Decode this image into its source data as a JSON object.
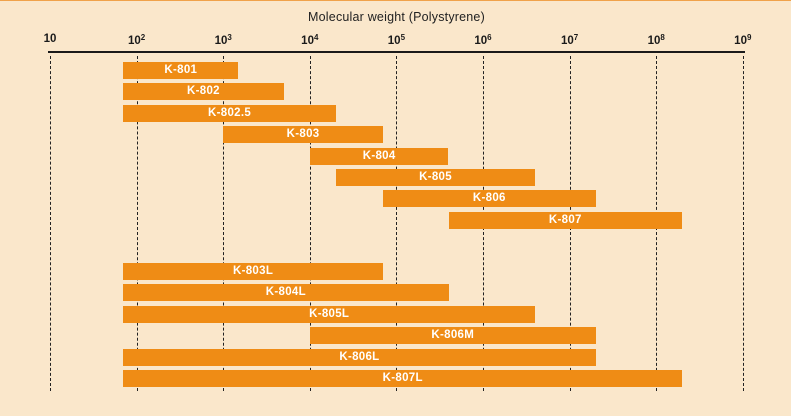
{
  "chart_data": {
    "type": "bar",
    "subtype": "horizontal-log-range-bars",
    "title": "Molecular weight (Polystyrene)",
    "x_axis": {
      "scale": "log10",
      "min": 10,
      "max": 1000000000,
      "gridlines": "dashed-vertical",
      "ticks": [
        {
          "label_base": "10",
          "label_exp": "",
          "value": 10
        },
        {
          "label_base": "10",
          "label_exp": "2",
          "value": 100
        },
        {
          "label_base": "10",
          "label_exp": "3",
          "value": 1000
        },
        {
          "label_base": "10",
          "label_exp": "4",
          "value": 10000
        },
        {
          "label_base": "10",
          "label_exp": "5",
          "value": 100000
        },
        {
          "label_base": "10",
          "label_exp": "6",
          "value": 1000000
        },
        {
          "label_base": "10",
          "label_exp": "7",
          "value": 10000000
        },
        {
          "label_base": "10",
          "label_exp": "8",
          "value": 100000000
        },
        {
          "label_base": "10",
          "label_exp": "9",
          "value": 1000000000
        }
      ]
    },
    "legend": "none",
    "series": [
      {
        "label": "K-801",
        "group": "K",
        "mw_min": 70,
        "mw_max": 1500
      },
      {
        "label": "K-802",
        "group": "K",
        "mw_min": 70,
        "mw_max": 5000
      },
      {
        "label": "K-802.5",
        "group": "K",
        "mw_min": 70,
        "mw_max": 20000
      },
      {
        "label": "K-803",
        "group": "K",
        "mw_min": 1000,
        "mw_max": 70000
      },
      {
        "label": "K-804",
        "group": "K",
        "mw_min": 10000,
        "mw_max": 400000
      },
      {
        "label": "K-805",
        "group": "K",
        "mw_min": 20000,
        "mw_max": 4000000
      },
      {
        "label": "K-806",
        "group": "K",
        "mw_min": 70000,
        "mw_max": 20000000
      },
      {
        "label": "K-807",
        "group": "K",
        "mw_min": 400000,
        "mw_max": 200000000
      },
      {
        "label": "K-803L",
        "group": "L",
        "mw_min": 70,
        "mw_max": 70000
      },
      {
        "label": "K-804L",
        "group": "L",
        "mw_min": 70,
        "mw_max": 400000
      },
      {
        "label": "K-805L",
        "group": "L",
        "mw_min": 70,
        "mw_max": 4000000
      },
      {
        "label": "K-806M",
        "group": "L",
        "mw_min": 10000,
        "mw_max": 20000000
      },
      {
        "label": "K-806L",
        "group": "L",
        "mw_min": 70,
        "mw_max": 20000000
      },
      {
        "label": "K-807L",
        "group": "L",
        "mw_min": 70,
        "mw_max": 200000000
      }
    ],
    "colors": {
      "background": "#fae7cb",
      "bar": "#ef8c15",
      "bar_label": "#ffffff",
      "axis_text": "#1a1a1a",
      "gridline": "#222222"
    }
  }
}
